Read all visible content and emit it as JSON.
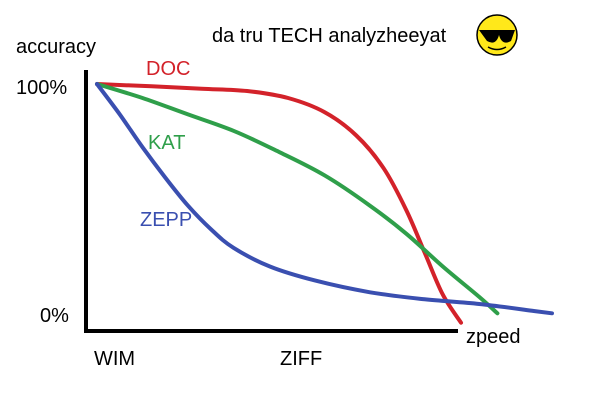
{
  "chart_data": {
    "type": "line",
    "title": "da tru TECH analyzheeyat",
    "ylabel": "accuracy",
    "xlabel": "zpeed",
    "y_ticks": [
      "100%",
      "0%"
    ],
    "x_ticks": [
      "WIM",
      "ZIFF"
    ],
    "ylim": [
      0,
      100
    ],
    "xlim": [
      0,
      100
    ],
    "grid": false,
    "legend": "inline labels next to curves",
    "emoji_icon": "sunglasses-smiley-icon",
    "series": [
      {
        "name": "DOC",
        "color": "#d3222a",
        "points": [
          [
            0,
            100
          ],
          [
            12,
            99
          ],
          [
            23,
            98
          ],
          [
            33,
            97
          ],
          [
            42,
            94
          ],
          [
            50,
            88
          ],
          [
            57,
            78
          ],
          [
            63,
            64
          ],
          [
            68,
            46
          ],
          [
            72,
            28
          ],
          [
            76,
            10
          ],
          [
            80,
            -2
          ]
        ]
      },
      {
        "name": "KAT",
        "color": "#2f9f4a",
        "points": [
          [
            0,
            100
          ],
          [
            10,
            94
          ],
          [
            20,
            87
          ],
          [
            30,
            80
          ],
          [
            40,
            71
          ],
          [
            50,
            61
          ],
          [
            60,
            48
          ],
          [
            68,
            36
          ],
          [
            76,
            22
          ],
          [
            84,
            9
          ],
          [
            88,
            2
          ]
        ]
      },
      {
        "name": "ZEPP",
        "color": "#3a4fb0",
        "points": [
          [
            0,
            100
          ],
          [
            5,
            87
          ],
          [
            10,
            73
          ],
          [
            15,
            60
          ],
          [
            20,
            48
          ],
          [
            25,
            38
          ],
          [
            30,
            30
          ],
          [
            38,
            22
          ],
          [
            48,
            16
          ],
          [
            60,
            11
          ],
          [
            72,
            8
          ],
          [
            84,
            6
          ],
          [
            96,
            3
          ],
          [
            100,
            2
          ]
        ]
      }
    ]
  }
}
